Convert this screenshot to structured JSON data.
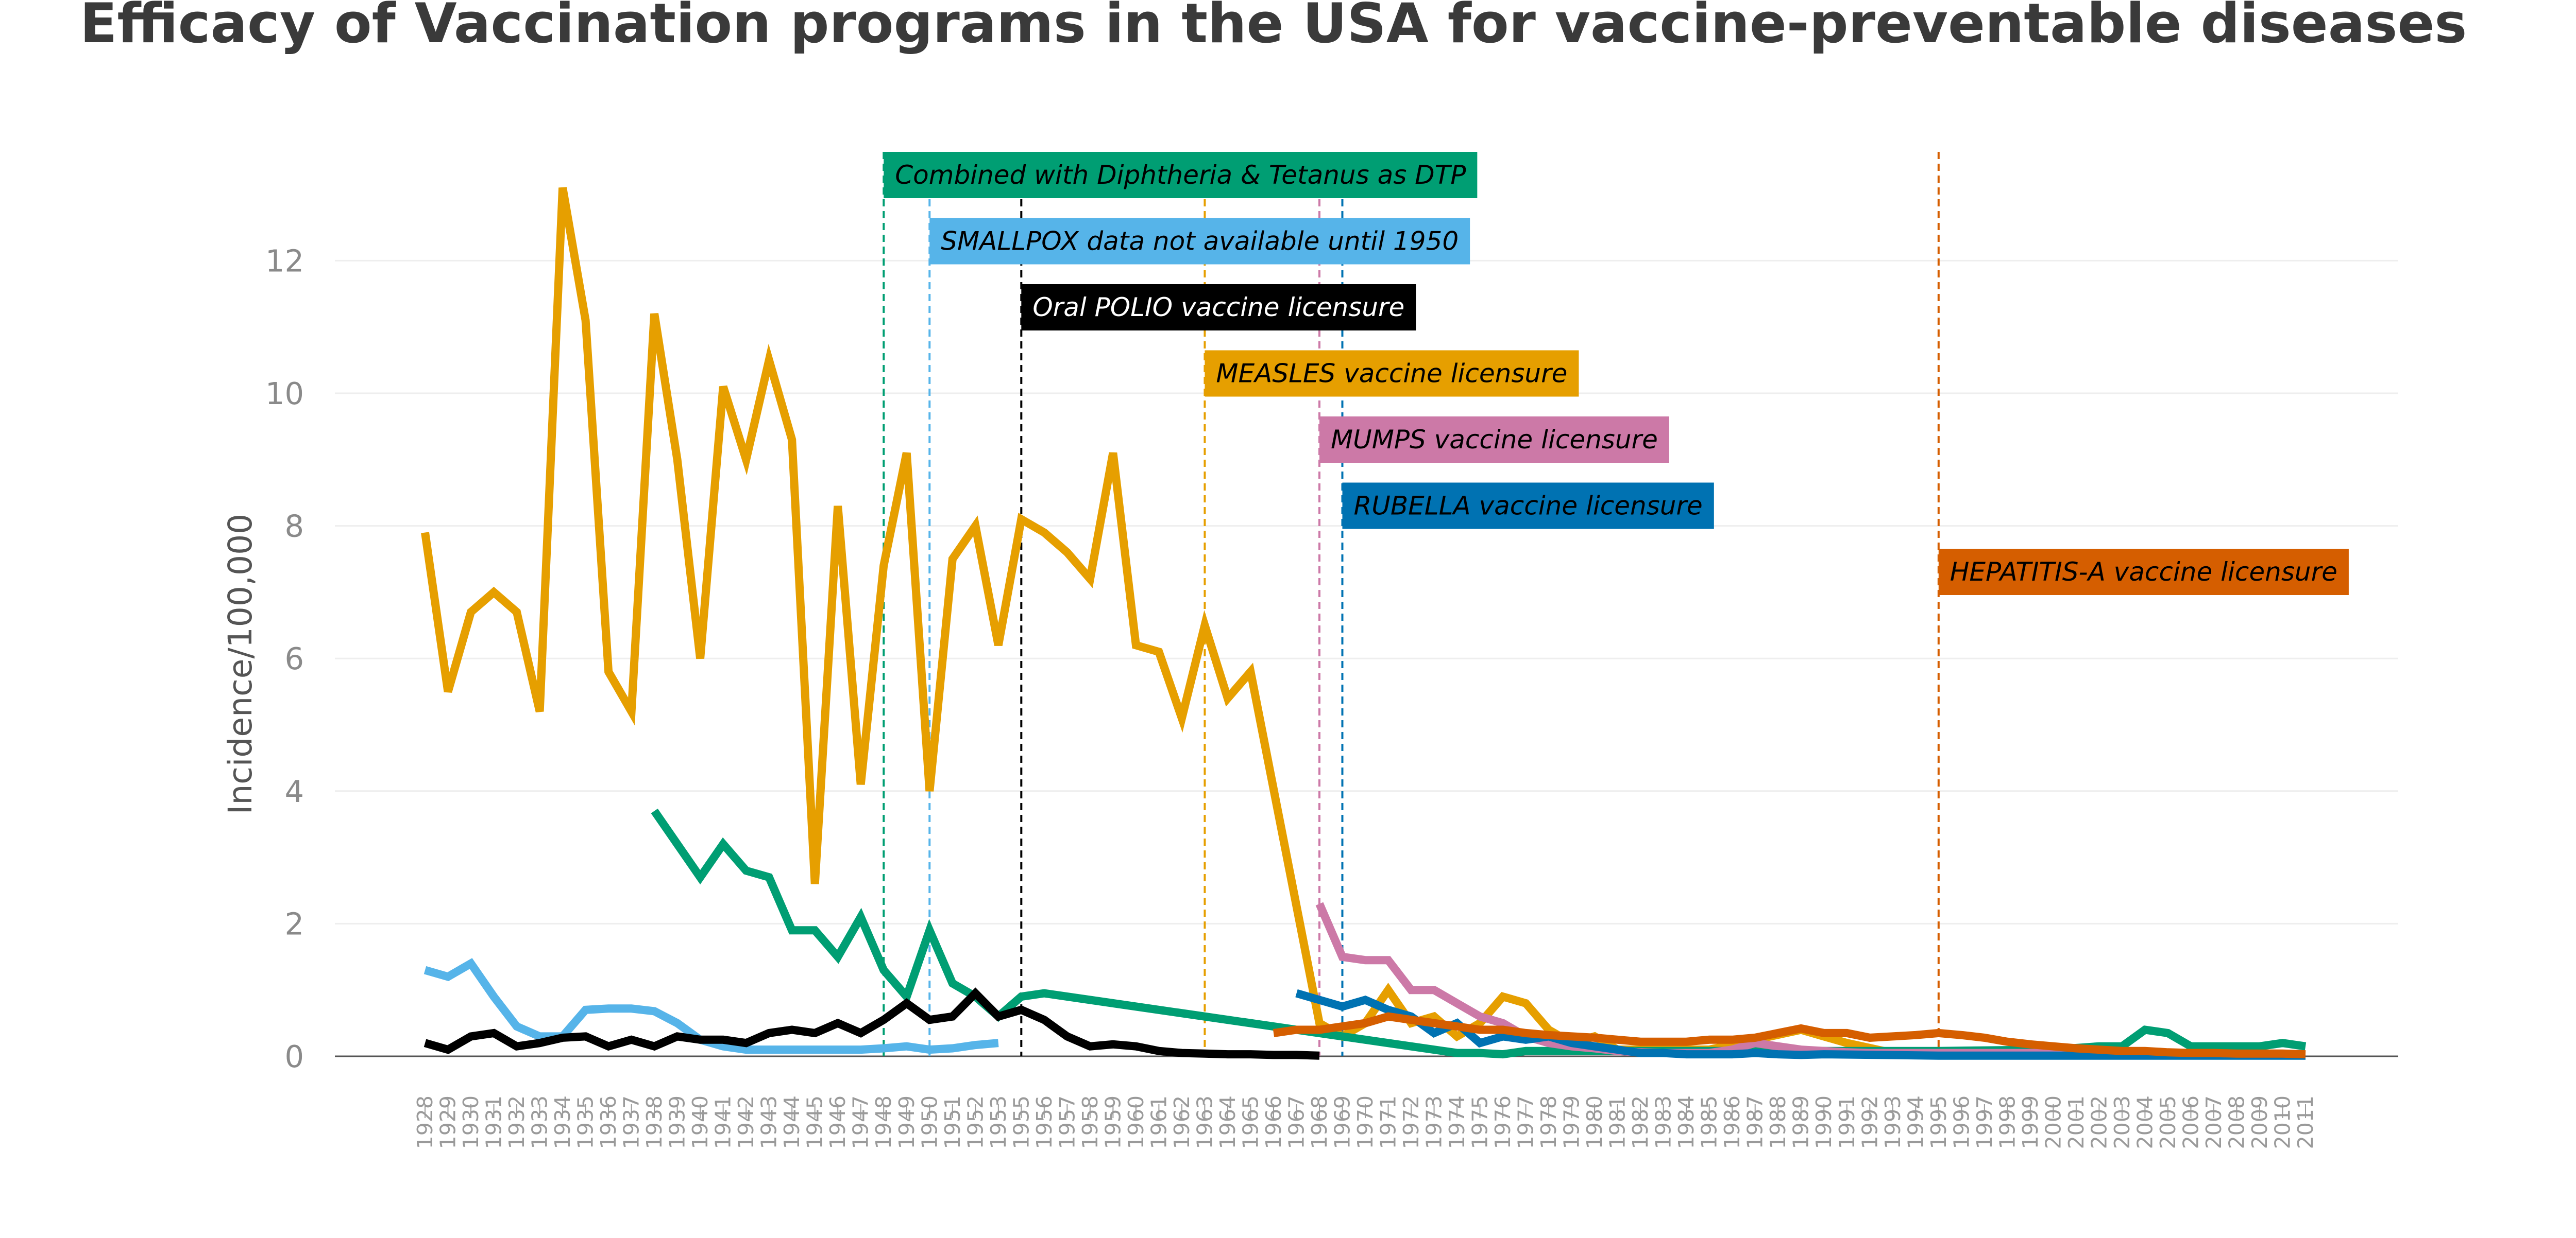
{
  "chart_data": {
    "type": "line",
    "title": "Efficacy of Vaccination programs in the USA for vaccine-preventable diseases",
    "xlabel": "",
    "ylabel": "Incidence/100,000",
    "ylim": [
      0,
      13.5
    ],
    "yticks": [
      0,
      2,
      4,
      6,
      8,
      10,
      12
    ],
    "grid": true,
    "categories": [
      "1928",
      "1929",
      "1930",
      "1931",
      "1932",
      "1933",
      "1934",
      "1935",
      "1936",
      "1937",
      "1938",
      "1939",
      "1940",
      "1941",
      "1942",
      "1943",
      "1944",
      "1945",
      "1946",
      "1947",
      "1948",
      "1949",
      "1950",
      "1951",
      "1952",
      "1953",
      "1955",
      "1956",
      "1957",
      "1958",
      "1959",
      "1960",
      "1961",
      "1962",
      "1963",
      "1964",
      "1965",
      "1966",
      "1967",
      "1968",
      "1969",
      "1970",
      "1971",
      "1972",
      "1973",
      "1974",
      "1975",
      "1976",
      "1977",
      "1978",
      "1979",
      "1980",
      "1981",
      "1982",
      "1983",
      "1984",
      "1985",
      "1986",
      "1987",
      "1988",
      "1989",
      "1990",
      "1991",
      "1992",
      "1993",
      "1994",
      "1995",
      "1996",
      "1997",
      "1998",
      "1999",
      "2000",
      "2001",
      "2002",
      "2003",
      "2004",
      "2005",
      "2006",
      "2007",
      "2008",
      "2009",
      "2010",
      "2011"
    ],
    "series": [
      {
        "key": "measles",
        "color": "#E69F00",
        "points": [
          [
            "1928",
            7.9
          ],
          [
            "1929",
            5.5
          ],
          [
            "1930",
            6.7
          ],
          [
            "1931",
            7.0
          ],
          [
            "1932",
            6.7
          ],
          [
            "1933",
            5.2
          ],
          [
            "1934",
            13.1
          ],
          [
            "1935",
            11.1
          ],
          [
            "1936",
            5.8
          ],
          [
            "1937",
            5.2
          ],
          [
            "1938",
            11.2
          ],
          [
            "1939",
            9.0
          ],
          [
            "1940",
            6.0
          ],
          [
            "1941",
            10.1
          ],
          [
            "1942",
            9.0
          ],
          [
            "1943",
            10.5
          ],
          [
            "1944",
            9.3
          ],
          [
            "1945",
            2.6
          ],
          [
            "1946",
            8.3
          ],
          [
            "1947",
            4.1
          ],
          [
            "1948",
            7.4
          ],
          [
            "1949",
            9.1
          ],
          [
            "1950",
            4.0
          ],
          [
            "1951",
            7.5
          ],
          [
            "1952",
            8.0
          ],
          [
            "1953",
            6.2
          ],
          [
            "1955",
            8.1
          ],
          [
            "1956",
            7.9
          ],
          [
            "1957",
            7.6
          ],
          [
            "1958",
            7.2
          ],
          [
            "1959",
            9.1
          ],
          [
            "1960",
            6.2
          ],
          [
            "1961",
            6.1
          ],
          [
            "1962",
            5.1
          ],
          [
            "1963",
            6.5
          ],
          [
            "1964",
            5.4
          ],
          [
            "1965",
            5.8
          ],
          [
            "1968",
            0.5
          ],
          [
            "1969",
            0.3
          ],
          [
            "1970",
            0.5
          ],
          [
            "1971",
            1.0
          ],
          [
            "1972",
            0.5
          ],
          [
            "1973",
            0.6
          ],
          [
            "1974",
            0.3
          ],
          [
            "1975",
            0.5
          ],
          [
            "1976",
            0.9
          ],
          [
            "1977",
            0.8
          ],
          [
            "1978",
            0.4
          ],
          [
            "1979",
            0.2
          ],
          [
            "1980",
            0.3
          ],
          [
            "1981",
            0.1
          ],
          [
            "1985",
            0.1
          ],
          [
            "1989",
            0.4
          ],
          [
            "1990",
            0.3
          ],
          [
            "1991",
            0.2
          ],
          [
            "1993",
            0.05
          ],
          [
            "2011",
            0.02
          ]
        ]
      },
      {
        "key": "dtp",
        "color": "#009E73",
        "points": [
          [
            "1938",
            3.7
          ],
          [
            "1939",
            3.2
          ],
          [
            "1940",
            2.7
          ],
          [
            "1941",
            3.2
          ],
          [
            "1942",
            2.8
          ],
          [
            "1943",
            2.7
          ],
          [
            "1944",
            1.9
          ],
          [
            "1945",
            1.9
          ],
          [
            "1946",
            1.5
          ],
          [
            "1947",
            2.1
          ],
          [
            "1948",
            1.3
          ],
          [
            "1949",
            0.9
          ],
          [
            "1950",
            1.9
          ],
          [
            "1951",
            1.1
          ],
          [
            "1952",
            0.9
          ],
          [
            "1953",
            0.6
          ],
          [
            "1955",
            0.9
          ],
          [
            "1956",
            0.95
          ],
          [
            "1974",
            0.05
          ],
          [
            "1975",
            0.05
          ],
          [
            "1976",
            0.03
          ],
          [
            "1977",
            0.08
          ],
          [
            "1995",
            0.08
          ],
          [
            "2000",
            0.1
          ],
          [
            "2002",
            0.15
          ],
          [
            "2003",
            0.15
          ],
          [
            "2004",
            0.4
          ],
          [
            "2005",
            0.35
          ],
          [
            "2006",
            0.15
          ],
          [
            "2007",
            0.15
          ],
          [
            "2008",
            0.15
          ],
          [
            "2009",
            0.15
          ],
          [
            "2010",
            0.2
          ],
          [
            "2011",
            0.15
          ]
        ]
      },
      {
        "key": "smallpox",
        "color": "#56B4E9",
        "points": [
          [
            "1928",
            1.3
          ],
          [
            "1929",
            1.2
          ],
          [
            "1930",
            1.4
          ],
          [
            "1931",
            0.9
          ],
          [
            "1932",
            0.45
          ],
          [
            "1933",
            0.3
          ],
          [
            "1934",
            0.3
          ],
          [
            "1935",
            0.7
          ],
          [
            "1936",
            0.72
          ],
          [
            "1937",
            0.72
          ],
          [
            "1938",
            0.68
          ],
          [
            "1939",
            0.5
          ],
          [
            "1940",
            0.25
          ],
          [
            "1941",
            0.15
          ],
          [
            "1942",
            0.1
          ],
          [
            "1943",
            0.1
          ],
          [
            "1944",
            0.1
          ],
          [
            "1945",
            0.1
          ],
          [
            "1946",
            0.1
          ],
          [
            "1947",
            0.1
          ],
          [
            "1948",
            0.12
          ],
          [
            "1949",
            0.15
          ],
          [
            "1950",
            0.1
          ],
          [
            "1951",
            0.12
          ],
          [
            "1952",
            0.17
          ],
          [
            "1953",
            0.2
          ]
        ]
      },
      {
        "key": "polio",
        "color": "#000000",
        "points": [
          [
            "1928",
            0.2
          ],
          [
            "1929",
            0.1
          ],
          [
            "1930",
            0.3
          ],
          [
            "1931",
            0.35
          ],
          [
            "1932",
            0.15
          ],
          [
            "1933",
            0.2
          ],
          [
            "1934",
            0.28
          ],
          [
            "1935",
            0.3
          ],
          [
            "1936",
            0.15
          ],
          [
            "1937",
            0.25
          ],
          [
            "1938",
            0.15
          ],
          [
            "1939",
            0.3
          ],
          [
            "1940",
            0.25
          ],
          [
            "1941",
            0.25
          ],
          [
            "1942",
            0.2
          ],
          [
            "1943",
            0.35
          ],
          [
            "1944",
            0.4
          ],
          [
            "1945",
            0.35
          ],
          [
            "1946",
            0.5
          ],
          [
            "1947",
            0.35
          ],
          [
            "1948",
            0.55
          ],
          [
            "1949",
            0.8
          ],
          [
            "1950",
            0.55
          ],
          [
            "1951",
            0.6
          ],
          [
            "1952",
            0.95
          ],
          [
            "1953",
            0.6
          ],
          [
            "1955",
            0.7
          ],
          [
            "1956",
            0.55
          ],
          [
            "1957",
            0.3
          ],
          [
            "1958",
            0.15
          ],
          [
            "1959",
            0.18
          ],
          [
            "1960",
            0.15
          ],
          [
            "1961",
            0.08
          ],
          [
            "1962",
            0.05
          ],
          [
            "1963",
            0.04
          ],
          [
            "1964",
            0.03
          ],
          [
            "1965",
            0.03
          ],
          [
            "1966",
            0.02
          ],
          [
            "1967",
            0.02
          ],
          [
            "1968",
            0.01
          ]
        ]
      },
      {
        "key": "mumps",
        "color": "#CC79A7",
        "points": [
          [
            "1968",
            2.3
          ],
          [
            "1969",
            1.5
          ],
          [
            "1970",
            1.45
          ],
          [
            "1971",
            1.45
          ],
          [
            "1972",
            1.0
          ],
          [
            "1973",
            1.0
          ],
          [
            "1974",
            0.8
          ],
          [
            "1975",
            0.6
          ],
          [
            "1976",
            0.5
          ],
          [
            "1977",
            0.3
          ],
          [
            "1978",
            0.2
          ],
          [
            "1979",
            0.15
          ],
          [
            "1980",
            0.12
          ],
          [
            "1981",
            0.08
          ],
          [
            "1982",
            0.06
          ],
          [
            "1983",
            0.05
          ],
          [
            "1984",
            0.05
          ],
          [
            "1985",
            0.05
          ],
          [
            "1986",
            0.1
          ],
          [
            "1987",
            0.2
          ],
          [
            "1988",
            0.15
          ],
          [
            "1989",
            0.1
          ],
          [
            "1990",
            0.08
          ],
          [
            "1991",
            0.06
          ],
          [
            "1992",
            0.05
          ],
          [
            "1993",
            0.05
          ],
          [
            "1994",
            0.05
          ],
          [
            "1995",
            0.05
          ],
          [
            "2000",
            0.05
          ],
          [
            "2001",
            0.04
          ],
          [
            "2002",
            0.03
          ]
        ]
      },
      {
        "key": "rubella",
        "color": "#0072B2",
        "points": [
          [
            "1967",
            0.95
          ],
          [
            "1968",
            0.85
          ],
          [
            "1969",
            0.75
          ],
          [
            "1970",
            0.85
          ],
          [
            "1971",
            0.7
          ],
          [
            "1972",
            0.6
          ],
          [
            "1973",
            0.35
          ],
          [
            "1974",
            0.5
          ],
          [
            "1975",
            0.2
          ],
          [
            "1976",
            0.3
          ],
          [
            "1977",
            0.25
          ],
          [
            "1978",
            0.3
          ],
          [
            "1979",
            0.2
          ],
          [
            "1980",
            0.15
          ],
          [
            "1981",
            0.1
          ],
          [
            "1982",
            0.05
          ],
          [
            "1983",
            0.05
          ],
          [
            "1984",
            0.03
          ],
          [
            "1985",
            0.03
          ],
          [
            "1986",
            0.03
          ],
          [
            "1987",
            0.05
          ],
          [
            "1988",
            0.03
          ],
          [
            "1989",
            0.02
          ],
          [
            "1990",
            0.03
          ],
          [
            "1995",
            0.01
          ],
          [
            "2011",
            0.01
          ]
        ]
      },
      {
        "key": "hepatitis-a",
        "color": "#D55E00",
        "points": [
          [
            "1966",
            0.35
          ],
          [
            "1967",
            0.4
          ],
          [
            "1968",
            0.4
          ],
          [
            "1969",
            0.45
          ],
          [
            "1970",
            0.5
          ],
          [
            "1971",
            0.6
          ],
          [
            "1972",
            0.55
          ],
          [
            "1973",
            0.5
          ],
          [
            "1974",
            0.45
          ],
          [
            "1975",
            0.4
          ],
          [
            "1976",
            0.4
          ],
          [
            "1977",
            0.35
          ],
          [
            "1978",
            0.32
          ],
          [
            "1979",
            0.3
          ],
          [
            "1980",
            0.28
          ],
          [
            "1981",
            0.25
          ],
          [
            "1982",
            0.22
          ],
          [
            "1983",
            0.22
          ],
          [
            "1984",
            0.22
          ],
          [
            "1985",
            0.25
          ],
          [
            "1986",
            0.25
          ],
          [
            "1987",
            0.28
          ],
          [
            "1988",
            0.35
          ],
          [
            "1989",
            0.42
          ],
          [
            "1990",
            0.35
          ],
          [
            "1991",
            0.35
          ],
          [
            "1992",
            0.28
          ],
          [
            "1993",
            0.3
          ],
          [
            "1994",
            0.32
          ],
          [
            "1995",
            0.35
          ],
          [
            "1996",
            0.32
          ],
          [
            "1997",
            0.28
          ],
          [
            "1998",
            0.22
          ],
          [
            "1999",
            0.18
          ],
          [
            "2000",
            0.15
          ],
          [
            "2001",
            0.12
          ],
          [
            "2002",
            0.1
          ],
          [
            "2003",
            0.08
          ],
          [
            "2004",
            0.08
          ],
          [
            "2005",
            0.06
          ],
          [
            "2006",
            0.05
          ],
          [
            "2007",
            0.05
          ],
          [
            "2008",
            0.04
          ],
          [
            "2009",
            0.04
          ],
          [
            "2010",
            0.04
          ],
          [
            "2011",
            0.03
          ]
        ]
      }
    ],
    "annotations": [
      {
        "text": "Combined with Diphtheria & Tetanus as DTP",
        "year": "1948",
        "row": 0,
        "bg": "#009E73",
        "fg": "#000000"
      },
      {
        "text": "SMALLPOX data not available until 1950",
        "year": "1950",
        "row": 1,
        "bg": "#56B4E9",
        "fg": "#000000"
      },
      {
        "text": "Oral POLIO vaccine licensure",
        "year": "1955",
        "row": 2,
        "bg": "#000000",
        "fg": "#ffffff"
      },
      {
        "text": "MEASLES vaccine licensure",
        "year": "1963",
        "row": 3,
        "bg": "#E69F00",
        "fg": "#000000"
      },
      {
        "text": "MUMPS vaccine licensure",
        "year": "1968",
        "row": 4,
        "bg": "#CC79A7",
        "fg": "#000000"
      },
      {
        "text": "RUBELLA vaccine licensure",
        "year": "1969",
        "row": 5,
        "bg": "#0072B2",
        "fg": "#000000"
      },
      {
        "text": "HEPATITIS-A vaccine licensure",
        "year": "1995",
        "row": 6,
        "bg": "#D55E00",
        "fg": "#000000"
      }
    ]
  }
}
